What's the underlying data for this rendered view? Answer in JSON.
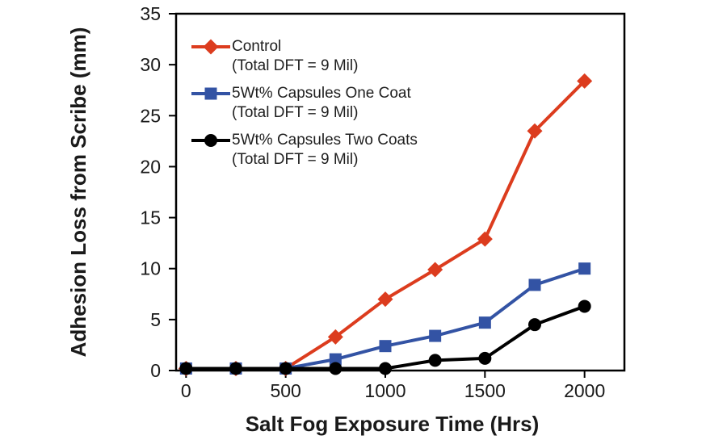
{
  "chart_data": {
    "type": "line",
    "title": "",
    "xlabel": "Salt Fog Exposure Time (Hrs)",
    "ylabel": "Adhesion Loss from Scribe (mm)",
    "x": [
      0,
      250,
      500,
      750,
      1000,
      1250,
      1500,
      1750,
      2000
    ],
    "x_ticks": [
      0,
      500,
      1000,
      1500,
      2000
    ],
    "y_ticks": [
      0,
      5,
      10,
      15,
      20,
      25,
      30,
      35
    ],
    "xlim": [
      -50,
      2200
    ],
    "ylim": [
      0,
      35
    ],
    "grid": false,
    "legend_position": "top-left-inside",
    "axis_color": "#000000",
    "series": [
      {
        "name": "Control",
        "subtitle": "(Total DFT = 9 Mil)",
        "color": "#dc3c1e",
        "marker": "diamond",
        "values": [
          0.2,
          0.2,
          0.2,
          3.3,
          7.0,
          9.9,
          12.9,
          23.5,
          28.4
        ]
      },
      {
        "name": "5Wt% Capsules One Coat",
        "subtitle": "(Total DFT = 9 Mil)",
        "color": "#3353a4",
        "marker": "square",
        "values": [
          0.2,
          0.2,
          0.2,
          1.1,
          2.4,
          3.4,
          4.7,
          8.4,
          10.0
        ]
      },
      {
        "name": "5Wt% Capsules Two Coats",
        "subtitle": "(Total DFT = 9 Mil)",
        "color": "#000000",
        "marker": "circle",
        "values": [
          0.2,
          0.2,
          0.2,
          0.2,
          0.2,
          1.0,
          1.2,
          4.5,
          6.3
        ]
      }
    ]
  }
}
